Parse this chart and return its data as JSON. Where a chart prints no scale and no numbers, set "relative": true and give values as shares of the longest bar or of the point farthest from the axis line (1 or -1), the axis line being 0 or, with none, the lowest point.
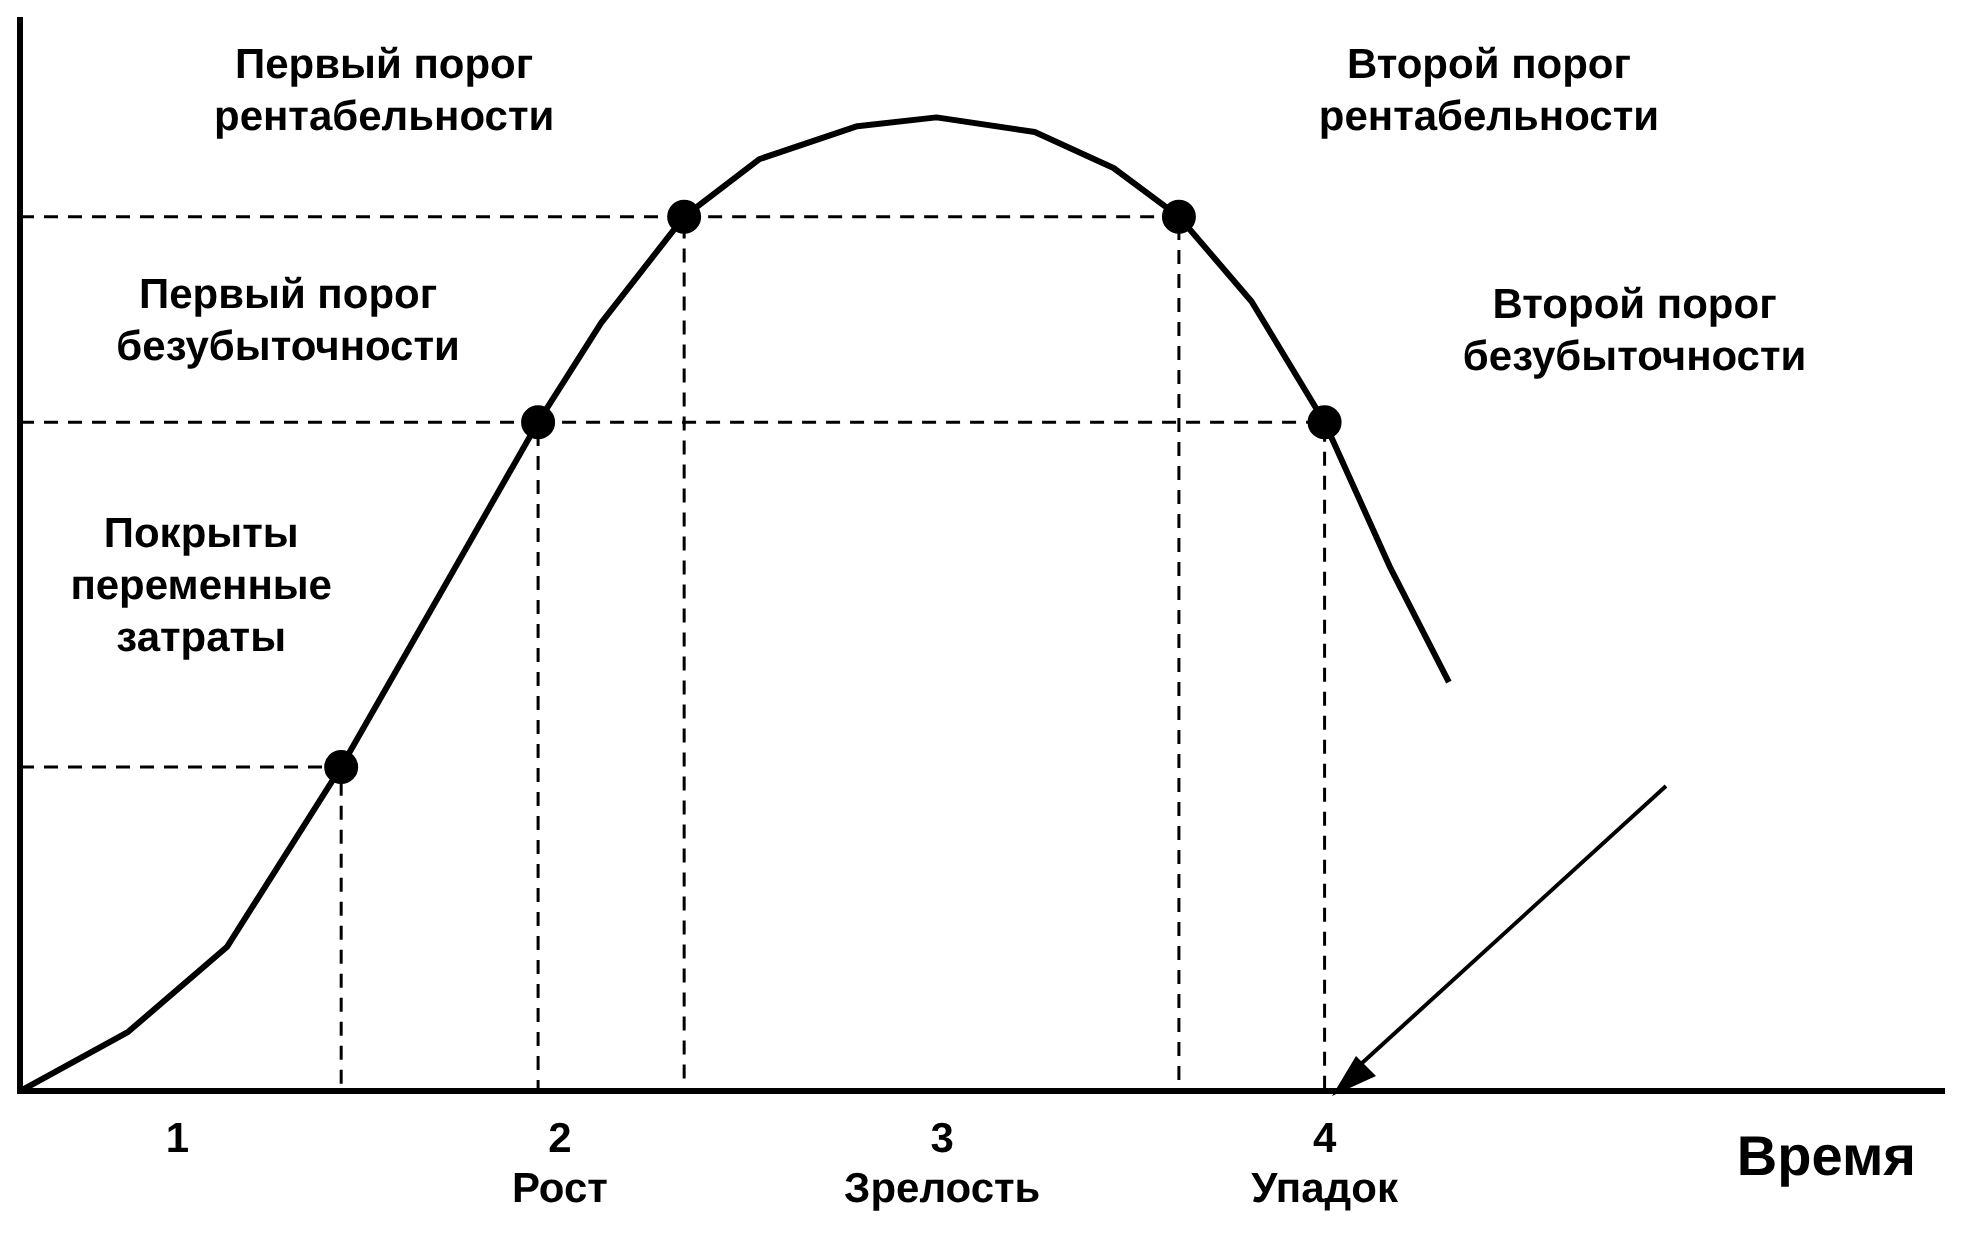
{
  "chart_data": {
    "type": "line",
    "relative": true,
    "xlabel": "Время",
    "xlim": [
      0.588,
      5.62
    ],
    "xticks": [
      {
        "value": 1,
        "label": "1"
      },
      {
        "value": 2,
        "label": "2\nРост"
      },
      {
        "value": 3,
        "label": "3\nЗрелость"
      },
      {
        "value": 4,
        "label": "4\nУпадок"
      }
    ],
    "tick_labels": "x",
    "grid": false,
    "legend": false,
    "series": [
      {
        "type": "line",
        "color": "#000000",
        "marker": "none",
        "x": [
          0.588,
          0.871,
          1.129,
          1.428,
          1.696,
          1.943,
          2.108,
          2.325,
          2.521,
          2.778,
          2.985,
          3.242,
          3.448,
          3.619,
          3.809,
          4.0,
          4.17,
          4.325
        ],
        "values": [
          0,
          0.061,
          0.148,
          0.333,
          0.517,
          0.687,
          0.789,
          0.898,
          0.957,
          0.991,
          1,
          0.985,
          0.948,
          0.898,
          0.811,
          0.687,
          0.539,
          0.42
        ]
      },
      {
        "type": "line",
        "color": "#000000",
        "marker": "none",
        "line_style": "dashed",
        "x": [
          0.588,
          1.428,
          1.428
        ],
        "values": [
          0.333,
          0.333,
          0
        ]
      },
      {
        "type": "line",
        "color": "#000000",
        "marker": "none",
        "line_style": "dashed",
        "x": [
          0.588,
          1.943,
          1.943
        ],
        "values": [
          0.687,
          0.687,
          0
        ]
      },
      {
        "type": "line",
        "color": "#000000",
        "marker": "none",
        "line_style": "dashed",
        "x": [
          0.588,
          2.325,
          2.325
        ],
        "values": [
          0.898,
          0.898,
          0
        ]
      },
      {
        "type": "line",
        "color": "#000000",
        "marker": "none",
        "line_style": "dashed",
        "x": [
          2.325,
          3.619,
          3.619
        ],
        "values": [
          0.898,
          0.898,
          0
        ]
      },
      {
        "type": "line",
        "color": "#000000",
        "marker": "none",
        "line_style": "dashed",
        "x": [
          1.943,
          4.0,
          4.0
        ],
        "values": [
          0.687,
          0.687,
          0
        ]
      },
      {
        "type": "scatter",
        "color": "#000000",
        "marker": "circle",
        "x": [
          1.428,
          1.943,
          2.325,
          3.619,
          4.0
        ],
        "values": [
          0.333,
          0.687,
          0.898,
          0.898,
          0.687
        ]
      }
    ],
    "annotations": [
      "Покрыты\nпеременные\nзатраты",
      "Первый порог\nбезубыточности",
      "Первый порог\nрентабельности",
      "Второй порог\nрентабельности",
      "Второй порог\nбезубыточности"
    ]
  }
}
